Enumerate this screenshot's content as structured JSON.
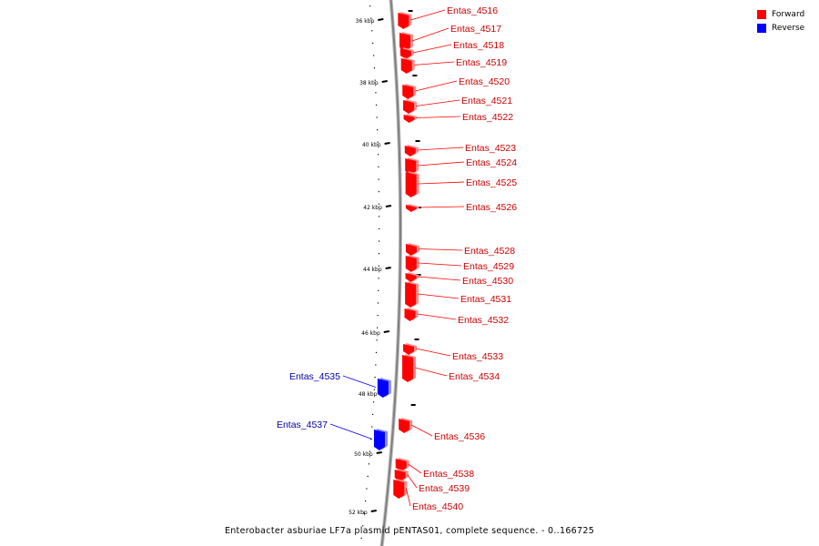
{
  "title": "Enterobacter asburiae LF7a plasmid pENTAS01, complete sequence. - 0..166725",
  "legend": {
    "forward": {
      "label": "Forward",
      "color": "#ff0000"
    },
    "reverse": {
      "label": "Reverse",
      "color": "#0000ff"
    }
  },
  "colors": {
    "forward": "#ff0000",
    "reverse": "#0000ff",
    "backbone": "#808080",
    "tick": "#000000"
  },
  "scale": {
    "unit": "kbp",
    "labels": [
      "36 kbp",
      "38 kbp",
      "40 kbp",
      "42 kbp",
      "44 kbp",
      "46 kbp",
      "48 kbp",
      "50 kbp",
      "52 kbp"
    ]
  },
  "genes": [
    {
      "name": "Entas_4516",
      "strand": "forward"
    },
    {
      "name": "Entas_4517",
      "strand": "forward"
    },
    {
      "name": "Entas_4518",
      "strand": "forward"
    },
    {
      "name": "Entas_4519",
      "strand": "forward"
    },
    {
      "name": "Entas_4520",
      "strand": "forward"
    },
    {
      "name": "Entas_4521",
      "strand": "forward"
    },
    {
      "name": "Entas_4522",
      "strand": "forward"
    },
    {
      "name": "Entas_4523",
      "strand": "forward"
    },
    {
      "name": "Entas_4524",
      "strand": "forward"
    },
    {
      "name": "Entas_4525",
      "strand": "forward"
    },
    {
      "name": "Entas_4526",
      "strand": "forward"
    },
    {
      "name": "Entas_4528",
      "strand": "forward"
    },
    {
      "name": "Entas_4529",
      "strand": "forward"
    },
    {
      "name": "Entas_4530",
      "strand": "forward"
    },
    {
      "name": "Entas_4531",
      "strand": "forward"
    },
    {
      "name": "Entas_4532",
      "strand": "forward"
    },
    {
      "name": "Entas_4533",
      "strand": "forward"
    },
    {
      "name": "Entas_4534",
      "strand": "forward"
    },
    {
      "name": "Entas_4535",
      "strand": "reverse"
    },
    {
      "name": "Entas_4537",
      "strand": "reverse"
    },
    {
      "name": "Entas_4536",
      "strand": "forward"
    },
    {
      "name": "Entas_4538",
      "strand": "forward"
    },
    {
      "name": "Entas_4539",
      "strand": "forward"
    },
    {
      "name": "Entas_4540",
      "strand": "forward"
    }
  ]
}
